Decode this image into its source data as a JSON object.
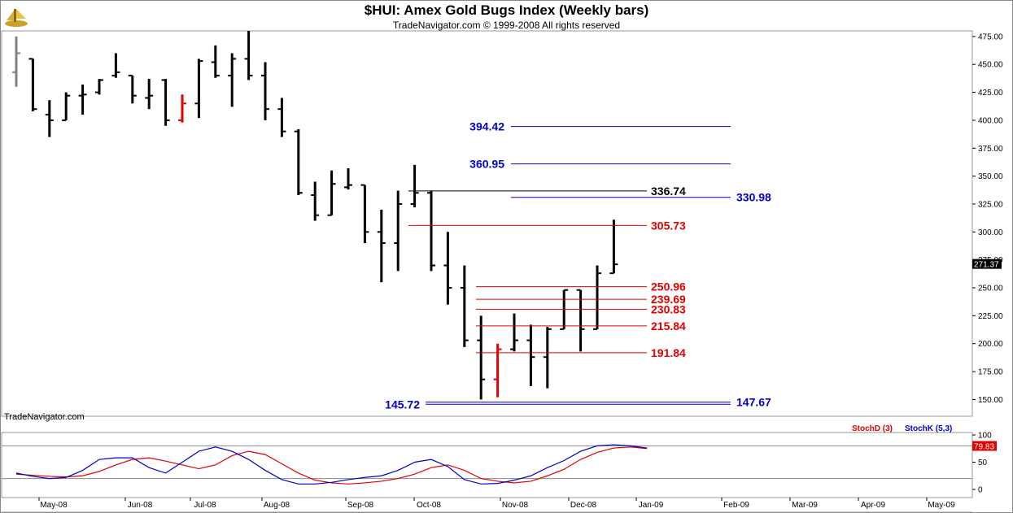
{
  "title": "$HUI:  Amex Gold Bugs Index  (Weekly bars)",
  "subtitle": "TradeNavigator.com © 1999-2008 All rights reserved",
  "watermark": "TradeNavigator.com",
  "colors": {
    "bar": "#000000",
    "bar_highlight": "#e00000",
    "red_level": "#e00000",
    "blue_level": "#0000cc",
    "black_level": "#000000",
    "stochD": "#e00000",
    "stochK": "#0000cc"
  },
  "chart_data": [
    {
      "type": "bar",
      "subtype": "ohlc",
      "x_tick_labels": [
        "May-08",
        "Jun-08",
        "Jul-08",
        "Aug-08",
        "Sep-08",
        "Oct-08",
        "Nov-08",
        "Dec-08",
        "Jan-09",
        "Feb-09",
        "Mar-09",
        "Apr-09",
        "May-09"
      ],
      "y_ticks": [
        150,
        175,
        200,
        225,
        250,
        275,
        300,
        325,
        350,
        375,
        400,
        425,
        450,
        475
      ],
      "ylim": [
        135,
        480
      ],
      "last_price": "271.37",
      "bars": [
        {
          "o": 443,
          "h": 475,
          "l": 430,
          "c": 460,
          "color": "gray"
        },
        {
          "o": 455,
          "h": 455,
          "l": 408,
          "c": 410
        },
        {
          "o": 405,
          "h": 418,
          "l": 385,
          "c": 400
        },
        {
          "o": 400,
          "h": 425,
          "l": 400,
          "c": 422
        },
        {
          "o": 422,
          "h": 432,
          "l": 405,
          "c": 423
        },
        {
          "o": 425,
          "h": 437,
          "l": 423,
          "c": 436
        },
        {
          "o": 440,
          "h": 460,
          "l": 438,
          "c": 443
        },
        {
          "o": 440,
          "h": 440,
          "l": 415,
          "c": 422
        },
        {
          "o": 420,
          "h": 437,
          "l": 410,
          "c": 422
        },
        {
          "o": 436,
          "h": 437,
          "l": 395,
          "c": 400
        },
        {
          "o": 400,
          "h": 423,
          "l": 398,
          "c": 415,
          "color": "red"
        },
        {
          "o": 415,
          "h": 455,
          "l": 402,
          "c": 453
        },
        {
          "o": 452,
          "h": 467,
          "l": 438,
          "c": 440
        },
        {
          "o": 440,
          "h": 460,
          "l": 412,
          "c": 455
        },
        {
          "o": 455,
          "h": 480,
          "l": 436,
          "c": 440
        },
        {
          "o": 440,
          "h": 452,
          "l": 400,
          "c": 410
        },
        {
          "o": 410,
          "h": 420,
          "l": 385,
          "c": 390
        },
        {
          "o": 390,
          "h": 392,
          "l": 333,
          "c": 335
        },
        {
          "o": 333,
          "h": 345,
          "l": 310,
          "c": 315
        },
        {
          "o": 315,
          "h": 355,
          "l": 315,
          "c": 343
        },
        {
          "o": 340,
          "h": 357,
          "l": 338,
          "c": 342
        },
        {
          "o": 342,
          "h": 342,
          "l": 290,
          "c": 300
        },
        {
          "o": 300,
          "h": 320,
          "l": 255,
          "c": 290
        },
        {
          "o": 290,
          "h": 337,
          "l": 265,
          "c": 325
        },
        {
          "o": 325,
          "h": 360,
          "l": 322,
          "c": 335
        },
        {
          "o": 335,
          "h": 337,
          "l": 265,
          "c": 270
        },
        {
          "o": 270,
          "h": 300,
          "l": 235,
          "c": 250
        },
        {
          "o": 250,
          "h": 270,
          "l": 197,
          "c": 203
        },
        {
          "o": 203,
          "h": 225,
          "l": 150,
          "c": 168
        },
        {
          "o": 168,
          "h": 200,
          "l": 152,
          "c": 195,
          "color": "red"
        },
        {
          "o": 195,
          "h": 227,
          "l": 193,
          "c": 203
        },
        {
          "o": 203,
          "h": 217,
          "l": 162,
          "c": 188
        },
        {
          "o": 188,
          "h": 215,
          "l": 160,
          "c": 213
        },
        {
          "o": 213,
          "h": 248,
          "l": 213,
          "c": 248
        },
        {
          "o": 248,
          "h": 248,
          "l": 193,
          "c": 213
        },
        {
          "o": 213,
          "h": 270,
          "l": 213,
          "c": 263
        },
        {
          "o": 263,
          "h": 311,
          "l": 263,
          "c": 271
        }
      ],
      "levels": [
        {
          "value": "394.42",
          "color": "blue",
          "label_side": "left"
        },
        {
          "value": "360.95",
          "color": "blue",
          "label_side": "left"
        },
        {
          "value": "336.74",
          "color": "black",
          "label_side": "right"
        },
        {
          "value": "330.98",
          "color": "blue",
          "label_side": "right_far"
        },
        {
          "value": "305.73",
          "color": "red",
          "label_side": "right"
        },
        {
          "value": "250.96",
          "color": "red",
          "label_side": "right"
        },
        {
          "value": "239.69",
          "color": "red",
          "label_side": "right"
        },
        {
          "value": "230.83",
          "color": "red",
          "label_side": "right"
        },
        {
          "value": "215.84",
          "color": "red",
          "label_side": "right"
        },
        {
          "value": "191.84",
          "color": "red",
          "label_side": "right"
        },
        {
          "value": "145.72",
          "color": "blue",
          "label_side": "left"
        },
        {
          "value": "147.67",
          "color": "blue",
          "label_side": "right_far"
        }
      ]
    },
    {
      "type": "line",
      "y_ticks": [
        0,
        50,
        100
      ],
      "ylim": [
        0,
        100
      ],
      "reference_lines": [
        20,
        80
      ],
      "last_value": "79.83",
      "legend": [
        {
          "name": "StochD (3)",
          "color": "red"
        },
        {
          "name": "StochK (5,3)",
          "color": "blue"
        }
      ],
      "series": [
        {
          "name": "StochD (3)",
          "values": [
            28,
            26,
            24,
            23,
            25,
            33,
            45,
            55,
            58,
            52,
            45,
            38,
            45,
            62,
            70,
            64,
            47,
            30,
            17,
            12,
            10,
            12,
            15,
            20,
            28,
            40,
            45,
            35,
            20,
            15,
            12,
            15,
            25,
            37,
            55,
            68,
            76,
            78,
            75
          ]
        },
        {
          "name": "StochK (5,3)",
          "values": [
            30,
            24,
            20,
            22,
            35,
            55,
            58,
            58,
            40,
            30,
            50,
            70,
            78,
            70,
            55,
            35,
            18,
            10,
            10,
            13,
            18,
            22,
            25,
            35,
            50,
            55,
            42,
            18,
            10,
            11,
            17,
            25,
            40,
            53,
            70,
            80,
            82,
            80,
            76
          ]
        }
      ]
    }
  ]
}
